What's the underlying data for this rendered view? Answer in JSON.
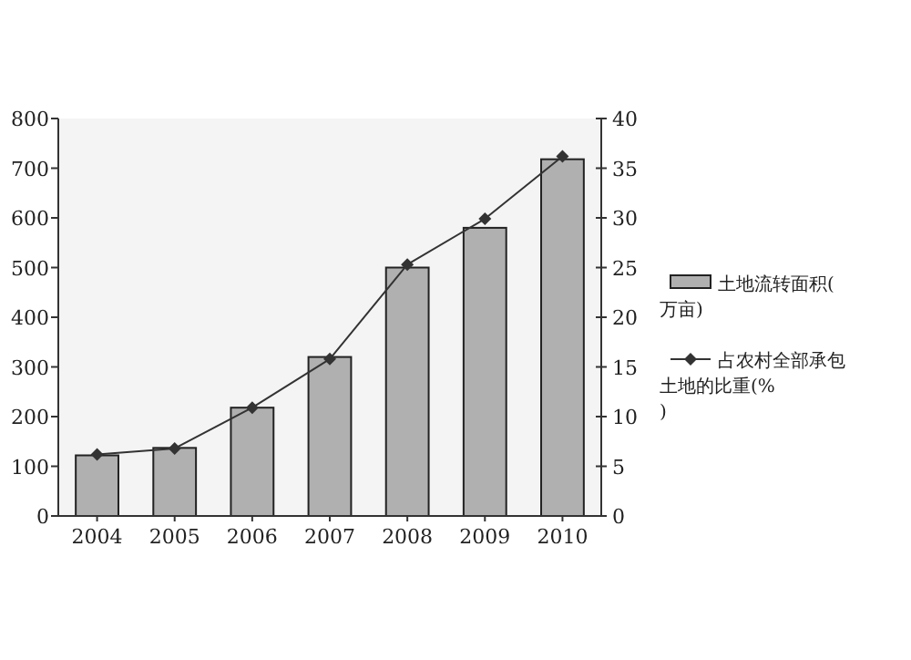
{
  "chart_data": {
    "type": "bar",
    "categories": [
      "2004",
      "2005",
      "2006",
      "2007",
      "2008",
      "2009",
      "2010"
    ],
    "series": [
      {
        "name": "土地流转面积(万亩)",
        "color": "#b0b0b0",
        "values": [
          122,
          137,
          218,
          320,
          500,
          580,
          718
        ]
      },
      {
        "name": "占农村全部承包土地的比重(%)",
        "type": "line",
        "axis": "y2",
        "color": "#333333",
        "marker": "diamond",
        "values": [
          6.2,
          6.8,
          10.9,
          15.8,
          25.3,
          29.9,
          36.2
        ]
      }
    ],
    "ylim": [
      0,
      800
    ],
    "yticks": [
      0,
      100,
      200,
      300,
      400,
      500,
      600,
      700,
      800
    ],
    "y2lim": [
      0,
      40
    ],
    "y2ticks": [
      0,
      5,
      10,
      15,
      20,
      25,
      30,
      35,
      40
    ],
    "legend": "right",
    "grid": false
  }
}
